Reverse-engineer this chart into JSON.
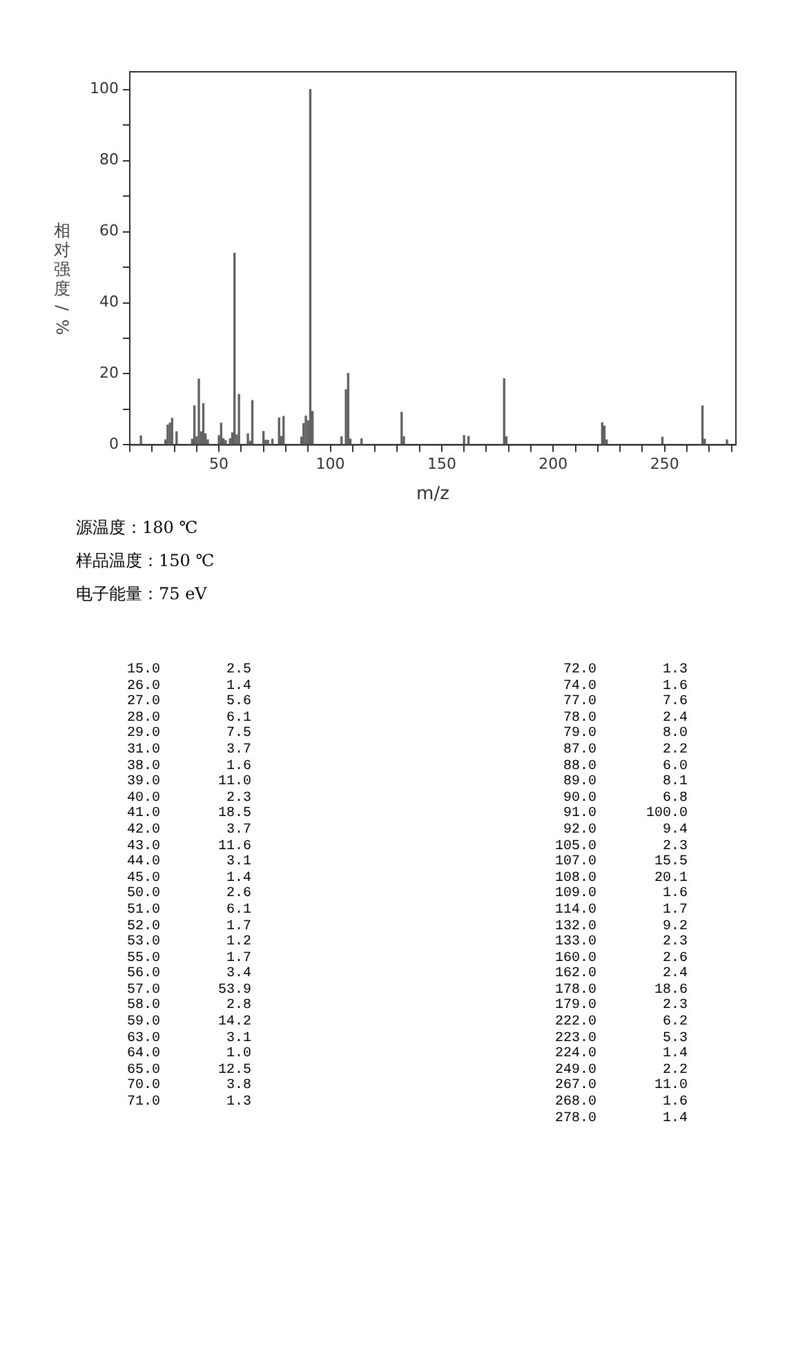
{
  "chart_data": {
    "type": "bar",
    "xlabel": "m/z",
    "ylabel": "相对强度/%",
    "x": [
      15,
      26,
      27,
      28,
      29,
      31,
      38,
      39,
      40,
      41,
      42,
      43,
      44,
      45,
      50,
      51,
      52,
      53,
      55,
      56,
      57,
      58,
      59,
      63,
      64,
      65,
      70,
      71,
      72,
      74,
      77,
      78,
      79,
      87,
      88,
      89,
      90,
      91,
      92,
      105,
      107,
      108,
      109,
      114,
      132,
      133,
      160,
      162,
      178,
      179,
      222,
      223,
      224,
      249,
      267,
      268,
      278
    ],
    "values": [
      2.5,
      1.4,
      5.6,
      6.1,
      7.5,
      3.7,
      1.6,
      11.0,
      2.3,
      18.5,
      3.7,
      11.6,
      3.1,
      1.4,
      2.6,
      6.1,
      1.7,
      1.2,
      1.7,
      3.4,
      53.9,
      2.8,
      14.2,
      3.1,
      1.0,
      12.5,
      3.8,
      1.3,
      1.3,
      1.6,
      7.6,
      2.4,
      8.0,
      2.2,
      6.0,
      8.1,
      6.8,
      100.0,
      9.4,
      2.3,
      15.5,
      20.1,
      1.6,
      1.7,
      9.2,
      2.3,
      2.6,
      2.4,
      18.6,
      2.3,
      6.2,
      5.3,
      1.4,
      2.2,
      11.0,
      1.6,
      1.4
    ],
    "color": "#606060",
    "xlim": [
      10,
      282
    ],
    "xticks": [
      {
        "value": 10,
        "label": null
      },
      {
        "value": 20,
        "label": null
      },
      {
        "value": 30,
        "label": null
      },
      {
        "value": 40,
        "label": null
      },
      50,
      {
        "value": 60,
        "label": null
      },
      {
        "value": 70,
        "label": null
      },
      {
        "value": 80,
        "label": null
      },
      {
        "value": 90,
        "label": null
      },
      100,
      {
        "value": 110,
        "label": null
      },
      {
        "value": 120,
        "label": null
      },
      {
        "value": 130,
        "label": null
      },
      {
        "value": 140,
        "label": null
      },
      150,
      {
        "value": 160,
        "label": null
      },
      {
        "value": 170,
        "label": null
      },
      {
        "value": 180,
        "label": null
      },
      {
        "value": 190,
        "label": null
      },
      200,
      {
        "value": 210,
        "label": null
      },
      {
        "value": 220,
        "label": null
      },
      {
        "value": 230,
        "label": null
      },
      {
        "value": 240,
        "label": null
      },
      250,
      {
        "value": 260,
        "label": null
      },
      {
        "value": 270,
        "label": null
      },
      {
        "value": 280,
        "label": null
      }
    ],
    "ylim": [
      0,
      105
    ],
    "yticks": [
      0,
      {
        "value": 10,
        "label": null
      },
      20,
      {
        "value": 30,
        "label": null
      },
      40,
      {
        "value": 50,
        "label": null
      },
      60,
      {
        "value": 70,
        "label": null
      },
      80,
      {
        "value": 90,
        "label": null
      },
      100
    ],
    "grid": false,
    "legend": false,
    "annotations": [
      "源温度：180 ℃",
      "样品温度：150 ℃",
      "电子能量：75 eV",
      "15.0        2.5",
      "26.0        1.4",
      "27.0        5.6",
      "28.0        6.1",
      "29.0        7.5",
      "31.0        3.7",
      "38.0        1.6",
      "39.0       11.0",
      "40.0        2.3",
      "41.0       18.5",
      "42.0        3.7",
      "43.0       11.6",
      "44.0        3.1",
      "45.0        1.4",
      "50.0        2.6",
      "51.0        6.1",
      "52.0        1.7",
      "53.0        1.2",
      "55.0        1.7",
      "56.0        3.4",
      "57.0       53.9",
      "58.0        2.8",
      "59.0       14.2",
      "63.0        3.1",
      "64.0        1.0",
      "65.0       12.5",
      "70.0        3.8",
      "71.0        1.3",
      "72.0        1.3",
      "74.0        1.6",
      "77.0        7.6",
      "78.0        2.4",
      "79.0        8.0",
      "87.0        2.2",
      "88.0        6.0",
      "89.0        8.1",
      "90.0        6.8",
      "91.0      100.0",
      "92.0        9.4",
      "105.0        2.3",
      "107.0       15.5",
      "108.0       20.1",
      "109.0        1.6",
      "114.0        1.7",
      "132.0        9.2",
      "133.0        2.3",
      "160.0        2.6",
      "162.0        2.4",
      "178.0       18.6",
      "179.0        2.3",
      "222.0        6.2",
      "223.0        5.3",
      "224.0        1.4",
      "249.0        2.2",
      "267.0       11.0",
      "268.0        1.6",
      "278.0        1.4"
    ]
  }
}
